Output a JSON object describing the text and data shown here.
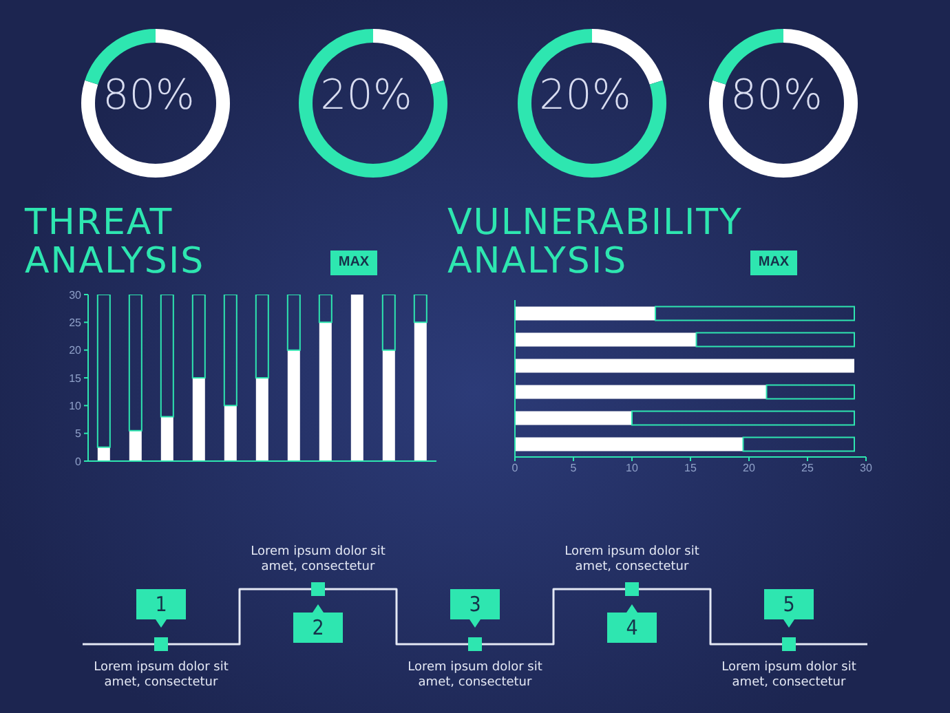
{
  "chart_data": [
    {
      "type": "donut",
      "categories": [
        null,
        null
      ],
      "values": [
        80,
        20
      ],
      "colors": [
        "#ffffff",
        "#2ee6b0"
      ],
      "annotations": [
        "80%"
      ]
    },
    {
      "type": "donut",
      "categories": [
        null,
        null
      ],
      "values": [
        20,
        80
      ],
      "colors": [
        "#ffffff",
        "#2ee6b0"
      ],
      "annotations": [
        "20%"
      ]
    },
    {
      "type": "donut",
      "categories": [
        null,
        null
      ],
      "values": [
        20,
        80
      ],
      "colors": [
        "#ffffff",
        "#2ee6b0"
      ],
      "annotations": [
        "20%"
      ]
    },
    {
      "type": "donut",
      "categories": [
        null,
        null
      ],
      "values": [
        80,
        20
      ],
      "colors": [
        "#ffffff",
        "#2ee6b0"
      ],
      "annotations": [
        "80%"
      ]
    },
    {
      "type": "bar",
      "title": "THREAT ANALYSIS",
      "stacked": true,
      "categories": [
        null,
        null,
        null,
        null,
        null,
        null,
        null,
        null,
        null,
        null,
        null
      ],
      "series": [
        {
          "color": "#ffffff",
          "values": [
            2.5,
            5.5,
            8,
            15,
            10,
            15,
            20,
            25,
            30,
            20,
            25
          ]
        },
        {
          "color": "#2ee6b0",
          "values": [
            27.5,
            24.5,
            22,
            15,
            20,
            15,
            10,
            5,
            0,
            10,
            5
          ]
        }
      ],
      "ylim": [
        0,
        30
      ],
      "yticks": [
        0,
        5,
        10,
        15,
        20,
        25,
        30
      ],
      "tick_labels": "y",
      "annotations": [
        "MAX"
      ]
    },
    {
      "type": "bar",
      "orientation": "horizontal",
      "title": "VULNERABILITY ANALYSIS",
      "stacked": true,
      "categories": [
        null,
        null,
        null,
        null,
        null,
        null
      ],
      "series": [
        {
          "color": "#ffffff",
          "values": [
            12,
            15.5,
            29,
            21.5,
            10,
            19.5
          ]
        },
        {
          "color": "#2ee6b0",
          "values": [
            17,
            13.5,
            0,
            7.5,
            19,
            9.5
          ]
        }
      ],
      "xlim": [
        0,
        30
      ],
      "xticks": [
        0,
        5,
        10,
        15,
        20,
        25,
        30
      ],
      "tick_labels": "x",
      "annotations": [
        "MAX"
      ]
    },
    {
      "type": "other",
      "categories": [
        "1",
        "2",
        "3",
        "4",
        "5"
      ],
      "annotations": [
        "Lorem ipsum dolor sit amet, consectetur",
        "Lorem ipsum dolor sit amet, consectetur",
        "Lorem ipsum dolor sit amet, consectetur",
        "Lorem ipsum dolor sit amet, consectetur",
        "Lorem ipsum dolor sit amet, consectetur"
      ]
    }
  ]
}
